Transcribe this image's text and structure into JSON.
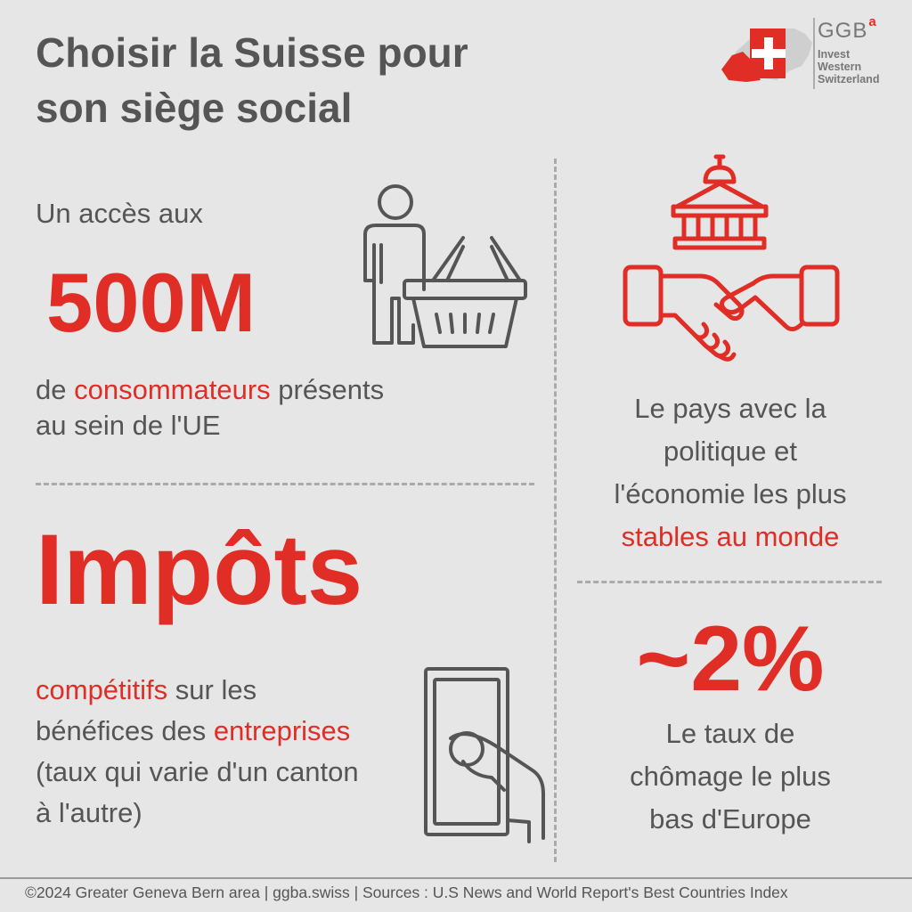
{
  "title": {
    "line1": "Choisir la Suisse pour",
    "line2": "son siège social"
  },
  "logo": {
    "name": "GGB",
    "superscript": "a",
    "tagline": [
      "Invest",
      "Western",
      "Switzerland"
    ]
  },
  "consumers_block": {
    "intro": "Un accès aux",
    "figure": "500M",
    "line1_prefix": "de ",
    "line1_highlight": "consommateurs",
    "line1_suffix": " présents",
    "line2": "au sein de l'UE"
  },
  "taxes_block": {
    "heading": "Impôts",
    "line1_highlight": "compétitifs",
    "line1_suffix": " sur les",
    "line2_prefix": "bénéfices des ",
    "line2_highlight": "entreprises",
    "line3": "(taux qui varie d'un canton",
    "line4": "à l'autre)"
  },
  "stability_block": {
    "line1": "Le pays avec la",
    "line2": "politique et",
    "line3": "l'économie les plus",
    "line4_highlight": "stables au monde"
  },
  "unemployment_block": {
    "figure": "~2%",
    "line1": "Le taux de",
    "line2": "chômage le plus",
    "line3": "bas d'Europe"
  },
  "footer": {
    "text": "©2024 Greater Geneva Bern area | ggba.swiss | Sources : U.S News and World Report's Best Countries Index"
  },
  "colors": {
    "accent": "#e02d26",
    "text": "#555555",
    "background": "#e6e6e6",
    "icon_gray": "#555555"
  },
  "icons": {
    "logo": "switzerland-map-cross-icon",
    "consumers": "shopper-basket-icon",
    "stability": "government-handshake-icon",
    "taxes": "hand-banknote-icon"
  }
}
